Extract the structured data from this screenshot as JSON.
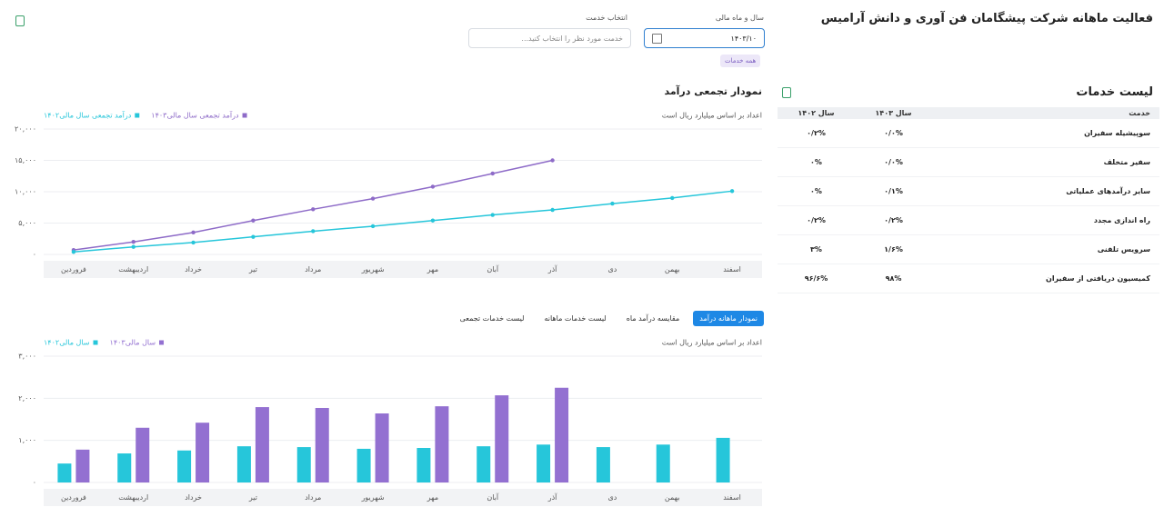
{
  "header": {
    "title": "فعالیت ماهانه شرکت پیشگامان فن آوری و دانش آرامیس"
  },
  "filters": {
    "period_label": "سال و ماه مالی",
    "period_value": "۱۴۰۳/۱۰",
    "service_label": "انتخاب خدمت",
    "service_placeholder": "خدمت مورد نظر را انتخاب کنید...",
    "chip": "همه خدمات"
  },
  "services_table": {
    "title": "لیست خدمات",
    "columns": [
      "خدمت",
      "سال ۱۴۰۳",
      "سال ۱۴۰۲"
    ],
    "rows": [
      [
        "سوپیشیله سفیران",
        "۰/۰%",
        "۰/۲%"
      ],
      [
        "سفیر متخلف",
        "۰/۰%",
        "۰%"
      ],
      [
        "سایر درآمدهای عملیاتی",
        "۰/۱%",
        "۰%"
      ],
      [
        "راه اندازی مجدد",
        "۰/۲%",
        "۰/۲%"
      ],
      [
        "سرویس تلفنی",
        "۱/۶%",
        "۳%"
      ],
      [
        "کمیسیون دریافتی از سفیران",
        "۹۸%",
        "۹۶/۶%"
      ]
    ]
  },
  "tabs": [
    "نمودار ماهانه درآمد",
    "مقایسه درآمد ماه",
    "لیست خدمات ماهانه",
    "لیست خدمات تجمعی"
  ],
  "chart_data": [
    {
      "type": "line",
      "title": "نمودار تجمعی درآمد",
      "note": "اعداد بر اساس میلیارد ریال است",
      "categories": [
        "فروردین",
        "اردیبهشت",
        "خرداد",
        "تیر",
        "مرداد",
        "شهریور",
        "مهر",
        "آبان",
        "آذر",
        "دی",
        "بهمن",
        "اسفند"
      ],
      "series": [
        {
          "name": "درآمد تجمعی سال مالی۱۴۰۳",
          "color": "#8e6bc8",
          "values": [
            700,
            2000,
            3500,
            5400,
            7200,
            8900,
            10800,
            12900,
            15000,
            null,
            null,
            null
          ]
        },
        {
          "name": "درآمد تجمعی سال مالی۱۴۰۲",
          "color": "#26c6da",
          "values": [
            400,
            1200,
            1900,
            2800,
            3700,
            4500,
            5400,
            6300,
            7100,
            8100,
            9000,
            10100
          ]
        }
      ],
      "ylim": [
        0,
        20000
      ],
      "yticks": [
        {
          "value": 0,
          "label": "۰"
        },
        {
          "value": 5000,
          "label": "۵,۰۰۰"
        },
        {
          "value": 10000,
          "label": "۱۰,۰۰۰"
        },
        {
          "value": 15000,
          "label": "۱۵,۰۰۰"
        },
        {
          "value": 20000,
          "label": "۲۰,۰۰۰"
        }
      ],
      "grid": true
    },
    {
      "type": "bar",
      "note": "اعداد بر اساس میلیارد ریال است",
      "categories": [
        "فروردین",
        "اردیبهشت",
        "خرداد",
        "تیر",
        "مرداد",
        "شهریور",
        "مهر",
        "آبان",
        "آذر",
        "دی",
        "بهمن",
        "اسفند"
      ],
      "series": [
        {
          "name": "سال مالی۱۴۰۳",
          "color": "#9370d1",
          "values": [
            780,
            1300,
            1420,
            1790,
            1770,
            1640,
            1810,
            2070,
            2250,
            null,
            null,
            null
          ]
        },
        {
          "name": "سال مالی۱۴۰۲",
          "color": "#26c6da",
          "values": [
            450,
            690,
            760,
            860,
            840,
            800,
            820,
            860,
            900,
            840,
            900,
            1060
          ]
        }
      ],
      "ylim": [
        0,
        3000
      ],
      "yticks": [
        {
          "value": 0,
          "label": "۰"
        },
        {
          "value": 1000,
          "label": "۱,۰۰۰"
        },
        {
          "value": 2000,
          "label": "۲,۰۰۰"
        },
        {
          "value": 3000,
          "label": "۳,۰۰۰"
        }
      ],
      "grid": true
    }
  ]
}
